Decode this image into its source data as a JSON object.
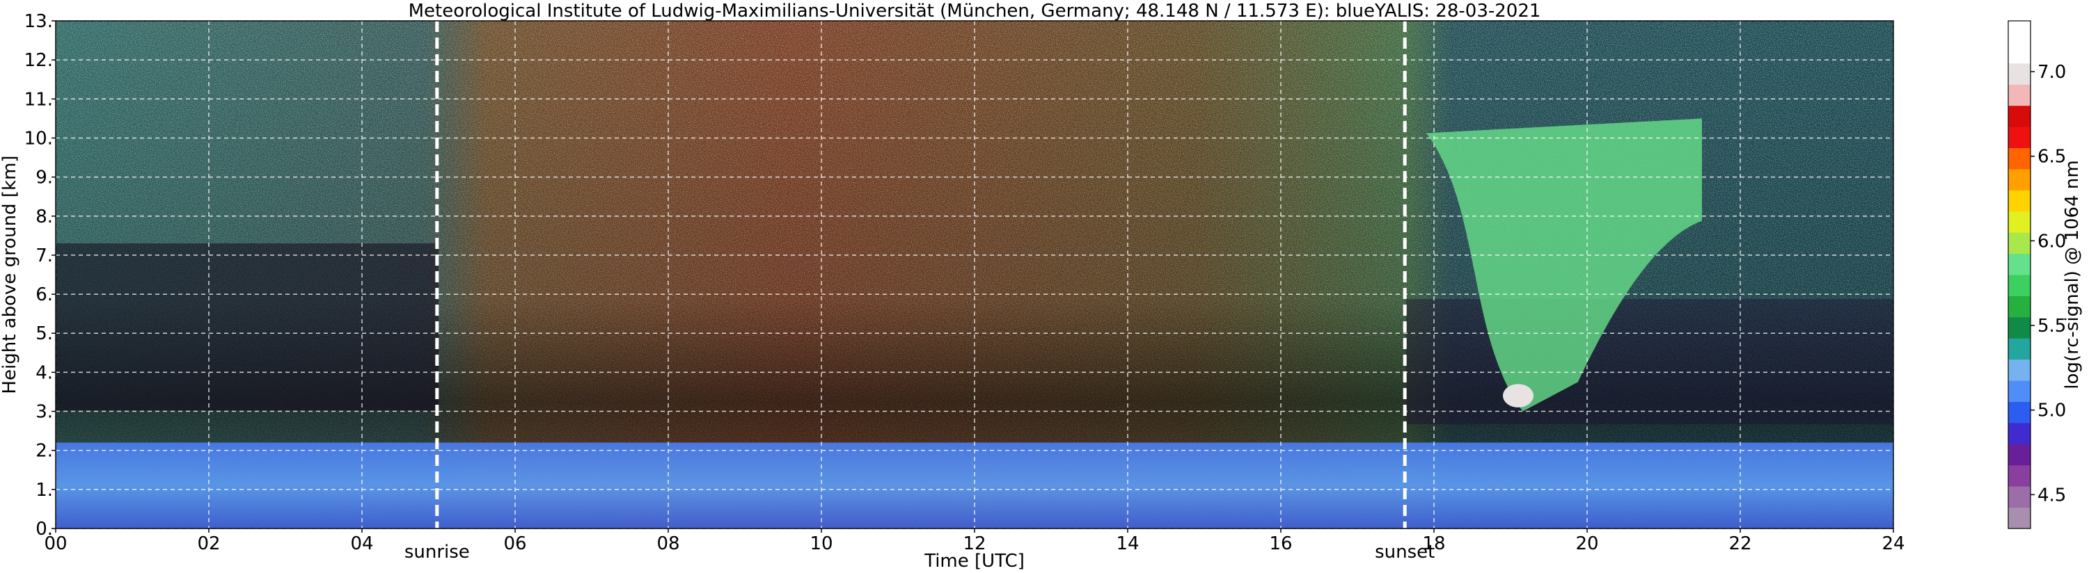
{
  "chart_data": {
    "type": "heatmap",
    "title": "Meteorological Institute of Ludwig-Maximilians-Universität (München, Germany; 48.148 N / 11.573 E):    blueYALIS: 28-03-2021",
    "xlabel": "Time [UTC]",
    "ylabel": "Height above ground [km]",
    "xlim": [
      0,
      24
    ],
    "ylim": [
      0,
      13
    ],
    "x_ticks": [
      "00",
      "02",
      "04",
      "06",
      "08",
      "10",
      "12",
      "14",
      "16",
      "18",
      "20",
      "22",
      "24"
    ],
    "y_ticks": [
      "0.",
      "1.",
      "2.",
      "3.",
      "4.",
      "5.",
      "6.",
      "7.",
      "8.",
      "9.",
      "10.",
      "11.",
      "12.",
      "13."
    ],
    "grid": true,
    "annotations": [
      {
        "label": "sunrise",
        "x": 4.98
      },
      {
        "label": "sunset",
        "x": 17.62
      }
    ],
    "colorbar": {
      "label": "log(rc-signal) @ 1064 nm",
      "range": [
        4.3,
        7.3
      ],
      "ticks": [
        "4.5",
        "5.0",
        "5.5",
        "6.0",
        "6.5",
        "7.0"
      ],
      "colors": [
        "#a88fb0",
        "#9c6ea8",
        "#8a3f9e",
        "#6a1f9a",
        "#3f2bd0",
        "#2c5cf0",
        "#4f8ef6",
        "#74b2f0",
        "#23a6a0",
        "#118a48",
        "#25b040",
        "#3bd060",
        "#66e08a",
        "#a8e84a",
        "#e0f020",
        "#ffd200",
        "#ffa000",
        "#ff6400",
        "#f01010",
        "#d80a0a",
        "#f2b8b8",
        "#e9e2e2",
        "#ffffff",
        "#ffffff"
      ]
    },
    "regions": [
      {
        "name": "boundary-layer",
        "x": [
          0,
          24
        ],
        "y": [
          0,
          2.2
        ],
        "value": 4.9
      },
      {
        "name": "cloud-cluster",
        "x": [
          17.9,
          21.5
        ],
        "y": [
          3.0,
          10.5
        ],
        "value": 5.9
      },
      {
        "name": "cloud-core",
        "x": [
          18.9,
          19.3
        ],
        "y": [
          3.1,
          3.7
        ],
        "value": 7.0
      }
    ]
  }
}
